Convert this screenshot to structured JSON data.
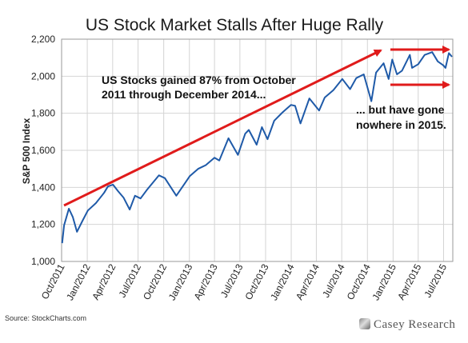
{
  "chart_data": {
    "type": "line",
    "title": "US Stock Market Stalls After Huge Rally",
    "ylabel": "S&P 500 Index",
    "xlabel": "",
    "ylim": [
      1000,
      2200
    ],
    "yticks": [
      "1,000",
      "1,200",
      "1,400",
      "1,600",
      "1,800",
      "2,000",
      "2,200"
    ],
    "xticks": [
      "Oct/2011",
      "Jan/2012",
      "Apr/2012",
      "Jul/2012",
      "Oct/2012",
      "Jan/2013",
      "Apr/2013",
      "Jul/2013",
      "Oct/2013",
      "Jan/2014",
      "Apr/2014",
      "Jul/2014",
      "Oct/2014",
      "Jan/2015",
      "Apr/2015",
      "Jul/2015"
    ],
    "grid": true,
    "legend": "none",
    "series_color": "#1f5aa8",
    "arrow_color": "#e01b1b",
    "series": [
      {
        "x": [
          "2011-10-03",
          "2011-10-10",
          "2011-10-27",
          "2011-11-10",
          "2011-11-25",
          "2011-12-15",
          "2012-01-03",
          "2012-02-01",
          "2012-03-01",
          "2012-03-15",
          "2012-04-02",
          "2012-04-20",
          "2012-05-10",
          "2012-06-01",
          "2012-06-20",
          "2012-07-10",
          "2012-08-01",
          "2012-09-14",
          "2012-10-05",
          "2012-11-15",
          "2012-12-15",
          "2013-01-02",
          "2013-02-01",
          "2013-03-01",
          "2013-04-01",
          "2013-04-18",
          "2013-05-21",
          "2013-06-24",
          "2013-07-20",
          "2013-08-02",
          "2013-08-30",
          "2013-09-18",
          "2013-10-08",
          "2013-11-01",
          "2013-12-01",
          "2013-12-31",
          "2014-01-15",
          "2014-02-03",
          "2014-03-07",
          "2014-04-11",
          "2014-05-01",
          "2014-06-01",
          "2014-07-03",
          "2014-07-31",
          "2014-08-22",
          "2014-09-18",
          "2014-10-15",
          "2014-11-01",
          "2014-11-28",
          "2014-12-16",
          "2014-12-29",
          "2015-01-15",
          "2015-02-02",
          "2015-03-02",
          "2015-03-10",
          "2015-04-01",
          "2015-04-24",
          "2015-05-21",
          "2015-06-10",
          "2015-06-29",
          "2015-07-08",
          "2015-07-20",
          "2015-07-31"
        ],
        "values": [
          1099,
          1195,
          1285,
          1240,
          1160,
          1220,
          1275,
          1315,
          1370,
          1405,
          1415,
          1380,
          1345,
          1280,
          1355,
          1340,
          1385,
          1465,
          1450,
          1355,
          1420,
          1460,
          1500,
          1520,
          1560,
          1545,
          1665,
          1575,
          1690,
          1710,
          1630,
          1725,
          1660,
          1760,
          1805,
          1845,
          1840,
          1745,
          1880,
          1815,
          1885,
          1925,
          1985,
          1930,
          1990,
          2010,
          1865,
          2020,
          2070,
          1985,
          2090,
          2010,
          2030,
          2115,
          2045,
          2065,
          2115,
          2130,
          2080,
          2060,
          2045,
          2125,
          2105
        ]
      }
    ],
    "annotations": [
      {
        "line1": "US Stocks gained 87% from October",
        "line2": "2011 through December 2014..."
      },
      {
        "line1": "... but have gone",
        "line2": "nowhere in 2015."
      }
    ],
    "source": "Source: StockCharts.com",
    "brand": "Casey Research"
  }
}
